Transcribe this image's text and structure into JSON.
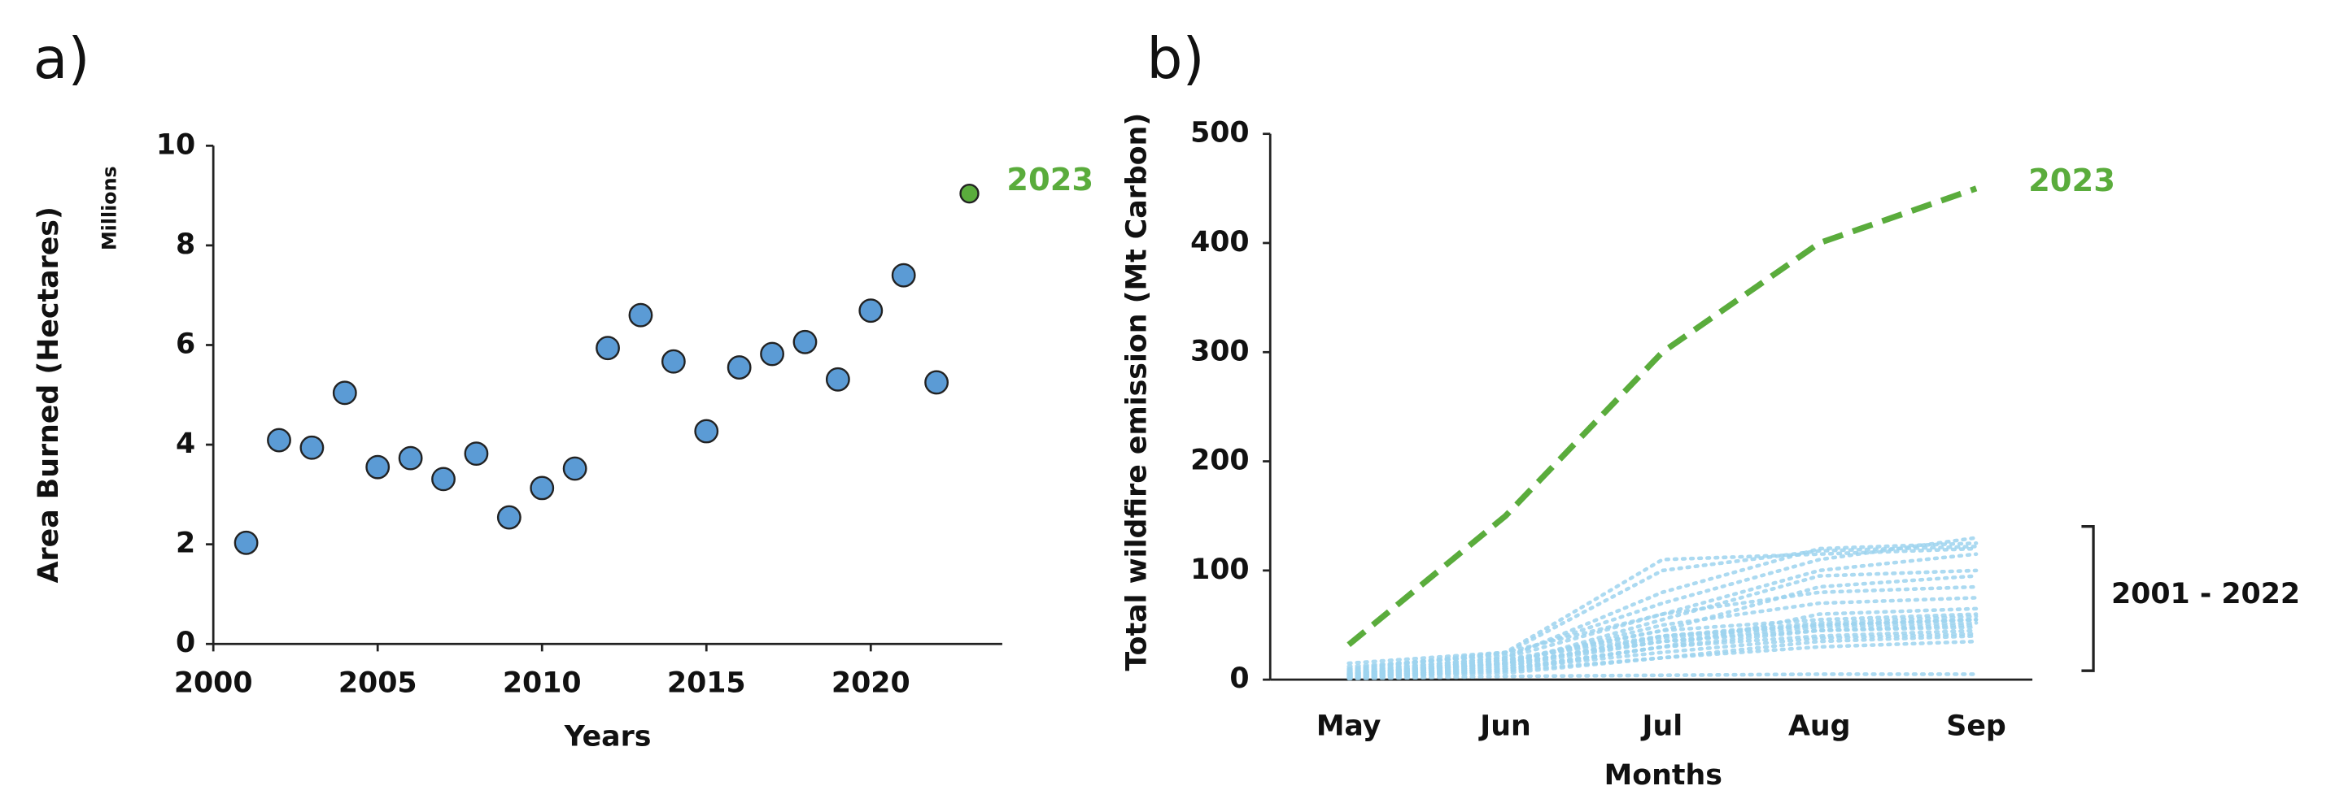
{
  "chart_data": [
    {
      "type": "scatter",
      "panel_label": "a)",
      "xlabel": "Years",
      "ylabel": "Area Burned (Hectares)",
      "y_unit_label": "Millions",
      "xlim": [
        2000,
        2024
      ],
      "xticks": [
        2000,
        2005,
        2010,
        2015,
        2020
      ],
      "ylim": [
        0,
        10
      ],
      "yticks": [
        0,
        2,
        4,
        6,
        8,
        10
      ],
      "series": [
        {
          "color": "#5b9bd5",
          "x": [
            2001,
            2002,
            2003,
            2004,
            2005,
            2006,
            2007,
            2008,
            2009,
            2010,
            2011,
            2012,
            2013,
            2014,
            2015,
            2016,
            2017,
            2018,
            2019,
            2020,
            2021,
            2022
          ],
          "values": [
            2.03,
            4.09,
            3.94,
            5.04,
            3.55,
            3.73,
            3.31,
            3.82,
            2.54,
            3.13,
            3.52,
            5.94,
            6.6,
            5.67,
            4.27,
            5.55,
            5.82,
            6.06,
            5.31,
            6.69,
            7.4,
            5.25
          ]
        },
        {
          "color": "#5aac3c",
          "x": [
            2023
          ],
          "values": [
            9.04
          ],
          "annotation": "2023"
        }
      ]
    },
    {
      "type": "line",
      "panel_label": "b)",
      "xlabel": "Months",
      "ylabel": "Total wildfire emission (Mt Carbon)",
      "categories": [
        "May",
        "Jun",
        "Jul",
        "Aug",
        "Sep"
      ],
      "ylim": [
        0,
        500
      ],
      "yticks": [
        0,
        100,
        200,
        300,
        400,
        500
      ],
      "bracket_label": "2001 - 2022",
      "series": [
        {
          "color": "#9dd3ee",
          "style": "dotted",
          "values": [
            1,
            3,
            4,
            5,
            5
          ]
        },
        {
          "color": "#9dd3ee",
          "style": "dotted",
          "values": [
            2,
            8,
            20,
            30,
            35
          ]
        },
        {
          "color": "#9dd3ee",
          "style": "dotted",
          "values": [
            3,
            10,
            30,
            45,
            50
          ]
        },
        {
          "color": "#9dd3ee",
          "style": "dotted",
          "values": [
            5,
            15,
            35,
            45,
            48
          ]
        },
        {
          "color": "#9dd3ee",
          "style": "dotted",
          "values": [
            4,
            12,
            40,
            50,
            55
          ]
        },
        {
          "color": "#9dd3ee",
          "style": "dotted",
          "values": [
            3,
            10,
            25,
            38,
            42
          ]
        },
        {
          "color": "#9dd3ee",
          "style": "dotted",
          "values": [
            6,
            18,
            45,
            55,
            60
          ]
        },
        {
          "color": "#9dd3ee",
          "style": "dotted",
          "values": [
            2,
            8,
            30,
            40,
            45
          ]
        },
        {
          "color": "#9dd3ee",
          "style": "dotted",
          "values": [
            8,
            20,
            60,
            80,
            85
          ]
        },
        {
          "color": "#9dd3ee",
          "style": "dotted",
          "values": [
            5,
            15,
            50,
            70,
            75
          ]
        },
        {
          "color": "#9dd3ee",
          "style": "dotted",
          "values": [
            10,
            25,
            110,
            115,
            120
          ]
        },
        {
          "color": "#9dd3ee",
          "style": "dotted",
          "values": [
            7,
            20,
            80,
            120,
            125
          ]
        },
        {
          "color": "#9dd3ee",
          "style": "dotted",
          "values": [
            4,
            14,
            55,
            95,
            100
          ]
        },
        {
          "color": "#9dd3ee",
          "style": "dotted",
          "values": [
            6,
            16,
            45,
            85,
            95
          ]
        },
        {
          "color": "#9dd3ee",
          "style": "dotted",
          "values": [
            3,
            10,
            30,
            60,
            65
          ]
        },
        {
          "color": "#9dd3ee",
          "style": "dotted",
          "values": [
            12,
            22,
            70,
            110,
            130
          ]
        },
        {
          "color": "#9dd3ee",
          "style": "dotted",
          "values": [
            5,
            18,
            40,
            52,
            58
          ]
        },
        {
          "color": "#9dd3ee",
          "style": "dotted",
          "values": [
            4,
            12,
            35,
            48,
            52
          ]
        },
        {
          "color": "#9dd3ee",
          "style": "dotted",
          "values": [
            9,
            24,
            100,
            118,
            122
          ]
        },
        {
          "color": "#9dd3ee",
          "style": "dotted",
          "values": [
            2,
            6,
            20,
            35,
            40
          ]
        },
        {
          "color": "#9dd3ee",
          "style": "dotted",
          "values": [
            6,
            14,
            38,
            50,
            55
          ]
        },
        {
          "color": "#9dd3ee",
          "style": "dotted",
          "values": [
            15,
            25,
            60,
            100,
            115
          ]
        },
        {
          "color": "#5aac3c",
          "style": "dashed",
          "values": [
            32,
            150,
            300,
            400,
            450
          ],
          "annotation": "2023"
        }
      ]
    }
  ]
}
